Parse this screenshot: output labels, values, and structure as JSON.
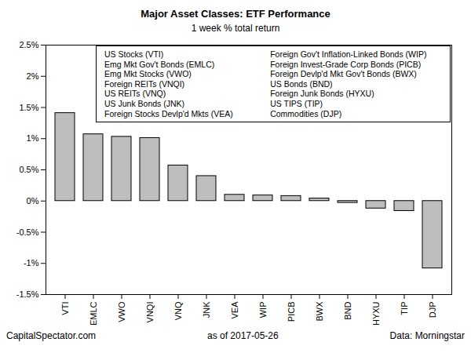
{
  "chart_data": {
    "type": "bar",
    "title": "Major Asset Classes: ETF Performance",
    "subtitle": "1 week % total return",
    "categories": [
      "VTI",
      "EMLC",
      "VWO",
      "VNQI",
      "VNQ",
      "JNK",
      "VEA",
      "WIP",
      "PICB",
      "BWX",
      "BND",
      "HYXU",
      "TIP",
      "DJP"
    ],
    "values": [
      1.41,
      1.07,
      1.03,
      1.01,
      0.57,
      0.4,
      0.1,
      0.09,
      0.08,
      0.04,
      -0.03,
      -0.12,
      -0.16,
      -1.08
    ],
    "color": "#bebebe",
    "ylim": [
      -1.5,
      2.5
    ],
    "yticks": [
      {
        "value": -1.5,
        "label": "-1.5%"
      },
      {
        "value": -1,
        "label": "-1%"
      },
      {
        "value": -0.5,
        "label": "-0.5%"
      },
      {
        "value": 0,
        "label": "0%"
      },
      {
        "value": 0.5,
        "label": "0.5%"
      },
      {
        "value": 1,
        "label": "1%"
      },
      {
        "value": 1.5,
        "label": "1.5%"
      },
      {
        "value": 2,
        "label": "2%"
      },
      {
        "value": 2.5,
        "label": "2.5%"
      }
    ],
    "grid": false,
    "annotations": [
      "US Stocks (VTI)",
      "Emg Mkt Gov't Bonds (EMLC)",
      "Emg Mkt Stocks (VWO)",
      "Foreign REITs (VNQI)",
      "US REITs (VNQ)",
      "US Junk Bonds (JNK)",
      "Foreign Stocks Devlp'd Mkts (VEA)",
      "Foreign Gov't Inflation-Linked Bonds (WIP)",
      "Foreign Invest-Grade Corp Bonds (PICB)",
      "Foreign Devlp'd Mkt Gov't Bonds (BWX)",
      "US Bonds (BND)",
      "Foreign Junk Bonds (HYXU)",
      "US TIPS (TIP)",
      "Commodities (DJP)"
    ],
    "captions": [
      "CapitalSpectator.com",
      "as of 2017-05-26",
      "Data: Morningstar"
    ]
  }
}
